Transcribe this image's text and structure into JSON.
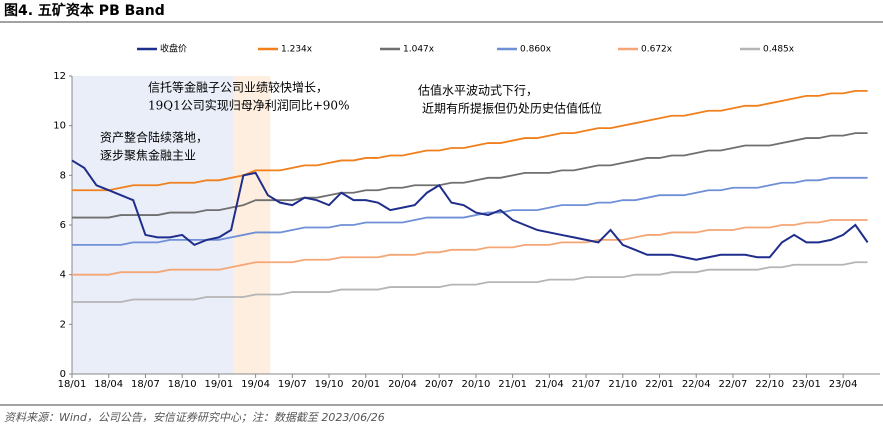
{
  "header": {
    "title": "图4. 五矿资本 PB Band"
  },
  "chart_data": {
    "type": "line",
    "categories": [
      "18/01",
      null,
      null,
      "18/04",
      null,
      null,
      "18/07",
      null,
      null,
      "18/10",
      null,
      null,
      "19/01",
      null,
      null,
      "19/04",
      null,
      null,
      "19/07",
      null,
      null,
      "19/10",
      null,
      null,
      "20/01",
      null,
      null,
      "20/04",
      null,
      null,
      "20/07",
      null,
      null,
      "20/10",
      null,
      null,
      "21/01",
      null,
      null,
      "21/04",
      null,
      null,
      "21/07",
      null,
      null,
      "21/10",
      null,
      null,
      "22/01",
      null,
      null,
      "22/04",
      null,
      null,
      "22/07",
      null,
      null,
      "22/10",
      null,
      null,
      "23/01",
      null,
      null,
      "23/04",
      null,
      null
    ],
    "series": [
      {
        "name": "收盘价",
        "color": "#1f2e8c",
        "values": [
          8.6,
          8.3,
          7.6,
          7.4,
          7.2,
          7.0,
          5.6,
          5.5,
          5.5,
          5.6,
          5.2,
          5.4,
          5.5,
          5.8,
          8.0,
          8.1,
          7.2,
          6.9,
          6.8,
          7.1,
          7.0,
          6.8,
          7.3,
          7.0,
          7.0,
          6.9,
          6.6,
          6.7,
          6.8,
          7.3,
          7.6,
          6.9,
          6.8,
          6.5,
          6.4,
          6.6,
          6.2,
          6.0,
          5.8,
          5.7,
          5.6,
          5.5,
          5.4,
          5.3,
          5.8,
          5.2,
          5.0,
          4.8,
          4.8,
          4.8,
          4.7,
          4.6,
          4.7,
          4.8,
          4.8,
          4.8,
          4.7,
          4.7,
          5.3,
          5.6,
          5.3,
          5.3,
          5.4,
          5.6,
          6.0,
          5.3
        ]
      },
      {
        "name": "1.234x",
        "color": "#f07f1c",
        "values": [
          7.4,
          7.4,
          7.4,
          7.4,
          7.5,
          7.6,
          7.6,
          7.6,
          7.7,
          7.7,
          7.7,
          7.8,
          7.8,
          7.9,
          8.0,
          8.2,
          8.2,
          8.2,
          8.3,
          8.4,
          8.4,
          8.5,
          8.6,
          8.6,
          8.7,
          8.7,
          8.8,
          8.8,
          8.9,
          9.0,
          9.0,
          9.1,
          9.1,
          9.2,
          9.3,
          9.3,
          9.4,
          9.5,
          9.5,
          9.6,
          9.7,
          9.7,
          9.8,
          9.9,
          9.9,
          10.0,
          10.1,
          10.2,
          10.3,
          10.4,
          10.4,
          10.5,
          10.6,
          10.6,
          10.7,
          10.8,
          10.8,
          10.9,
          11.0,
          11.1,
          11.2,
          11.2,
          11.3,
          11.3,
          11.4,
          11.4
        ]
      },
      {
        "name": "1.047x",
        "color": "#6f6f6f",
        "values": [
          6.3,
          6.3,
          6.3,
          6.3,
          6.4,
          6.4,
          6.4,
          6.4,
          6.5,
          6.5,
          6.5,
          6.6,
          6.6,
          6.7,
          6.8,
          7.0,
          7.0,
          7.0,
          7.0,
          7.1,
          7.1,
          7.2,
          7.3,
          7.3,
          7.4,
          7.4,
          7.5,
          7.5,
          7.6,
          7.6,
          7.6,
          7.7,
          7.7,
          7.8,
          7.9,
          7.9,
          8.0,
          8.1,
          8.1,
          8.1,
          8.2,
          8.2,
          8.3,
          8.4,
          8.4,
          8.5,
          8.6,
          8.7,
          8.7,
          8.8,
          8.8,
          8.9,
          9.0,
          9.0,
          9.1,
          9.2,
          9.2,
          9.2,
          9.3,
          9.4,
          9.5,
          9.5,
          9.6,
          9.6,
          9.7,
          9.7
        ]
      },
      {
        "name": "0.860x",
        "color": "#6f8fd6",
        "values": [
          5.2,
          5.2,
          5.2,
          5.2,
          5.2,
          5.3,
          5.3,
          5.3,
          5.4,
          5.4,
          5.4,
          5.4,
          5.4,
          5.5,
          5.6,
          5.7,
          5.7,
          5.7,
          5.8,
          5.9,
          5.9,
          5.9,
          6.0,
          6.0,
          6.1,
          6.1,
          6.1,
          6.1,
          6.2,
          6.3,
          6.3,
          6.3,
          6.3,
          6.4,
          6.5,
          6.5,
          6.6,
          6.6,
          6.6,
          6.7,
          6.8,
          6.8,
          6.8,
          6.9,
          6.9,
          7.0,
          7.0,
          7.1,
          7.2,
          7.2,
          7.2,
          7.3,
          7.4,
          7.4,
          7.5,
          7.5,
          7.5,
          7.6,
          7.7,
          7.7,
          7.8,
          7.8,
          7.9,
          7.9,
          7.9,
          7.9
        ]
      },
      {
        "name": "0.672x",
        "color": "#f4a675",
        "values": [
          4.0,
          4.0,
          4.0,
          4.0,
          4.1,
          4.1,
          4.1,
          4.1,
          4.2,
          4.2,
          4.2,
          4.2,
          4.2,
          4.3,
          4.4,
          4.5,
          4.5,
          4.5,
          4.5,
          4.6,
          4.6,
          4.6,
          4.7,
          4.7,
          4.7,
          4.7,
          4.8,
          4.8,
          4.8,
          4.9,
          4.9,
          5.0,
          5.0,
          5.0,
          5.1,
          5.1,
          5.1,
          5.2,
          5.2,
          5.2,
          5.3,
          5.3,
          5.3,
          5.4,
          5.4,
          5.4,
          5.5,
          5.6,
          5.6,
          5.7,
          5.7,
          5.7,
          5.8,
          5.8,
          5.8,
          5.9,
          5.9,
          5.9,
          6.0,
          6.0,
          6.1,
          6.1,
          6.2,
          6.2,
          6.2,
          6.2
        ]
      },
      {
        "name": "0.485x",
        "color": "#b5b5b5",
        "values": [
          2.9,
          2.9,
          2.9,
          2.9,
          2.9,
          3.0,
          3.0,
          3.0,
          3.0,
          3.0,
          3.0,
          3.1,
          3.1,
          3.1,
          3.1,
          3.2,
          3.2,
          3.2,
          3.3,
          3.3,
          3.3,
          3.3,
          3.4,
          3.4,
          3.4,
          3.4,
          3.5,
          3.5,
          3.5,
          3.5,
          3.5,
          3.6,
          3.6,
          3.6,
          3.7,
          3.7,
          3.7,
          3.7,
          3.7,
          3.8,
          3.8,
          3.8,
          3.9,
          3.9,
          3.9,
          3.9,
          4.0,
          4.0,
          4.0,
          4.1,
          4.1,
          4.1,
          4.2,
          4.2,
          4.2,
          4.2,
          4.2,
          4.3,
          4.3,
          4.4,
          4.4,
          4.4,
          4.4,
          4.4,
          4.5,
          4.5
        ]
      }
    ],
    "ylim": [
      0,
      12
    ],
    "yticks": [
      0,
      2,
      4,
      6,
      8,
      10,
      12
    ],
    "grid": false,
    "legend": "top",
    "annotations": [
      [
        "信托等金融子公司业绩较快增长，",
        "19Q1公司实现归母净利润同比+90%"
      ],
      [
        "资产整合陆续落地，",
        "逐步聚焦金融主业"
      ],
      [
        "估值水平波动式下行，",
        "近期有所提振但仍处历史估值低位"
      ]
    ]
  },
  "footer": {
    "source": "资料来源：Wind，公司公告，安信证券研究中心；注：数据截至 2023/06/26"
  }
}
